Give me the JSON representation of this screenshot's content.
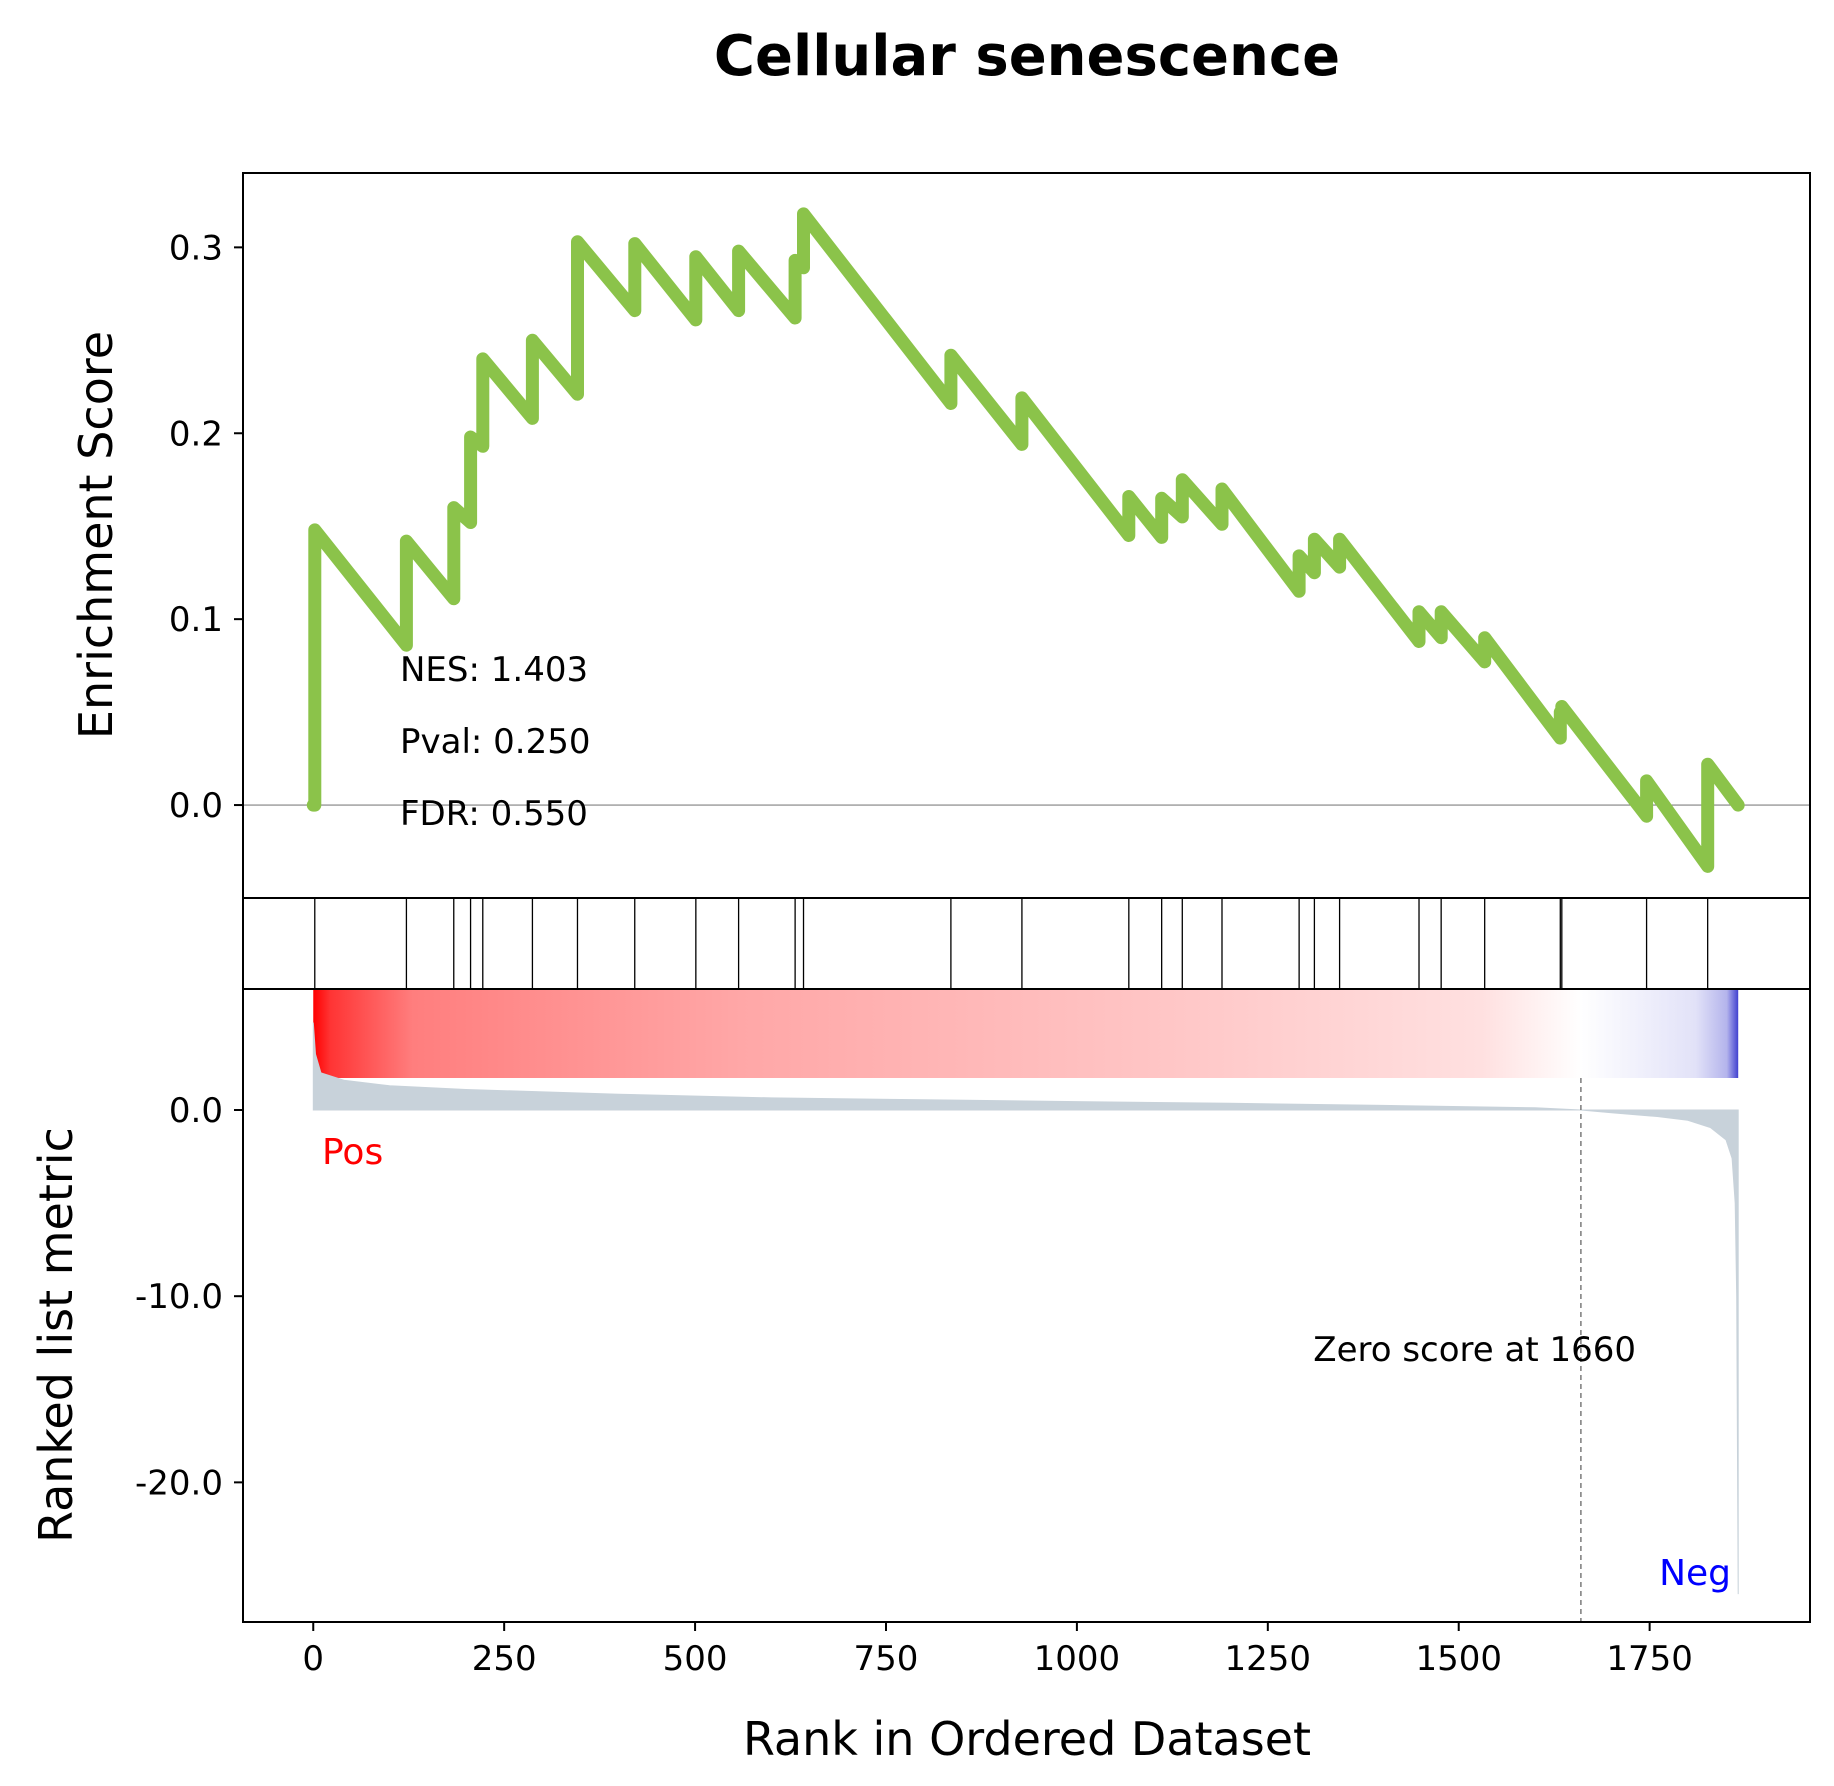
{
  "chart_data": {
    "type": "line",
    "title": "Cellular senescence",
    "xlabel": "Rank in Ordered Dataset",
    "xlim": [
      -92,
      1960
    ],
    "x_ticks": [
      0,
      250,
      500,
      750,
      1000,
      1250,
      1500,
      1750
    ],
    "x_tick_labels": [
      "0",
      "250",
      "500",
      "750",
      "1000",
      "1250",
      "1500",
      "1750"
    ],
    "n_genes": 1866,
    "colors": {
      "es_line": "#8bc34a",
      "pos_label": "#ff0000",
      "neg_label": "#0000ff",
      "metric_fill": "#c8d2da",
      "axis": "#000000",
      "zero_line": "#808080"
    },
    "enrichment": {
      "ylabel": "Enrichment Score",
      "ylim": [
        -0.05,
        0.34
      ],
      "y_ticks": [
        0.0,
        0.1,
        0.2,
        0.3
      ],
      "y_tick_labels": [
        "0.0",
        "0.1",
        "0.2",
        "0.3"
      ],
      "hit_ranks": [
        2,
        122,
        184,
        206,
        222,
        287,
        346,
        421,
        501,
        557,
        631,
        642,
        835,
        928,
        1068,
        1111,
        1138,
        1190,
        1291,
        1311,
        1344,
        1448,
        1477,
        1534,
        1633,
        1635,
        1746,
        1826
      ],
      "running_es": [
        [
          0,
          0.0
        ],
        [
          2,
          0.0
        ],
        [
          2,
          0.148
        ],
        [
          122,
          0.086
        ],
        [
          122,
          0.142
        ],
        [
          184,
          0.111
        ],
        [
          184,
          0.16
        ],
        [
          206,
          0.152
        ],
        [
          206,
          0.198
        ],
        [
          222,
          0.193
        ],
        [
          222,
          0.24
        ],
        [
          287,
          0.208
        ],
        [
          287,
          0.25
        ],
        [
          346,
          0.221
        ],
        [
          346,
          0.303
        ],
        [
          421,
          0.266
        ],
        [
          421,
          0.302
        ],
        [
          501,
          0.261
        ],
        [
          501,
          0.295
        ],
        [
          557,
          0.266
        ],
        [
          557,
          0.298
        ],
        [
          631,
          0.262
        ],
        [
          631,
          0.293
        ],
        [
          642,
          0.289
        ],
        [
          642,
          0.318
        ],
        [
          835,
          0.216
        ],
        [
          835,
          0.242
        ],
        [
          928,
          0.194
        ],
        [
          928,
          0.219
        ],
        [
          1068,
          0.145
        ],
        [
          1068,
          0.166
        ],
        [
          1111,
          0.144
        ],
        [
          1111,
          0.165
        ],
        [
          1138,
          0.155
        ],
        [
          1138,
          0.175
        ],
        [
          1190,
          0.151
        ],
        [
          1190,
          0.17
        ],
        [
          1291,
          0.115
        ],
        [
          1291,
          0.134
        ],
        [
          1311,
          0.125
        ],
        [
          1311,
          0.143
        ],
        [
          1344,
          0.128
        ],
        [
          1344,
          0.143
        ],
        [
          1448,
          0.088
        ],
        [
          1448,
          0.104
        ],
        [
          1477,
          0.09
        ],
        [
          1477,
          0.104
        ],
        [
          1534,
          0.077
        ],
        [
          1534,
          0.09
        ],
        [
          1633,
          0.036
        ],
        [
          1633,
          0.05
        ],
        [
          1635,
          0.05
        ],
        [
          1635,
          0.053
        ],
        [
          1746,
          -0.006
        ],
        [
          1746,
          0.013
        ],
        [
          1826,
          -0.033
        ],
        [
          1826,
          0.022
        ],
        [
          1866,
          0.0
        ]
      ],
      "annotations": [
        "NES: 1.403",
        "Pval: 0.250",
        "FDR: 0.550"
      ]
    },
    "ranked_metric": {
      "ylabel": "Ranked list metric",
      "ylim": [
        -27.5,
        6.5
      ],
      "y_ticks": [
        0.0,
        -10.0,
        -20.0
      ],
      "y_tick_labels": [
        "0.0",
        "-10.0",
        "-20.0"
      ],
      "zero_cross": 1660,
      "zero_cross_label": "Zero score at 1660",
      "pos_label": "Pos",
      "neg_label": "Neg",
      "metric_curve": [
        [
          0,
          4.7
        ],
        [
          3,
          3.0
        ],
        [
          10,
          2.0
        ],
        [
          40,
          1.6
        ],
        [
          100,
          1.3
        ],
        [
          200,
          1.1
        ],
        [
          400,
          0.85
        ],
        [
          600,
          0.65
        ],
        [
          800,
          0.55
        ],
        [
          1000,
          0.45
        ],
        [
          1200,
          0.36
        ],
        [
          1400,
          0.25
        ],
        [
          1600,
          0.12
        ],
        [
          1660,
          0.0
        ],
        [
          1700,
          -0.15
        ],
        [
          1760,
          -0.35
        ],
        [
          1800,
          -0.55
        ],
        [
          1830,
          -0.95
        ],
        [
          1850,
          -1.6
        ],
        [
          1858,
          -2.6
        ],
        [
          1862,
          -5.0
        ],
        [
          1864,
          -10.0
        ],
        [
          1866,
          -26.0
        ]
      ]
    }
  }
}
